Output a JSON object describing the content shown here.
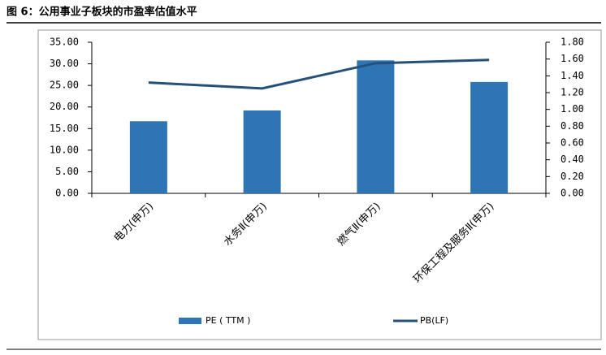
{
  "chart_data": {
    "type": "bar-line",
    "title": "图 6：公用事业子板块的市盈率估值水平",
    "categories": [
      "电力(申万)",
      "水务Ⅱ(申万)",
      "燃气Ⅱ(申万)",
      "环保工程及服务Ⅱ(申万)"
    ],
    "series": [
      {
        "name": "PE ( TTM )",
        "type": "bar",
        "color": "#2e75b6",
        "values": [
          16.7,
          19.2,
          30.8,
          25.8
        ]
      },
      {
        "name": "PB(LF)",
        "type": "line",
        "axis": "y2",
        "color": "#24507a",
        "values": [
          1.32,
          1.25,
          1.55,
          1.59
        ]
      }
    ],
    "ylim": [
      0,
      35
    ],
    "yticks": [
      {
        "value": 0,
        "label": "0.00"
      },
      {
        "value": 5,
        "label": "5.00"
      },
      {
        "value": 10,
        "label": "10.00"
      },
      {
        "value": 15,
        "label": "15.00"
      },
      {
        "value": 20,
        "label": "20.00"
      },
      {
        "value": 25,
        "label": "25.00"
      },
      {
        "value": 30,
        "label": "30.00"
      },
      {
        "value": 35,
        "label": "35.00"
      }
    ],
    "y2lim": [
      0,
      1.8
    ],
    "y2ticks": [
      {
        "value": 0,
        "label": "0.00"
      },
      {
        "value": 0.2,
        "label": "0.20"
      },
      {
        "value": 0.4,
        "label": "0.40"
      },
      {
        "value": 0.6,
        "label": "0.60"
      },
      {
        "value": 0.8,
        "label": "0.80"
      },
      {
        "value": 1.0,
        "label": "1.00"
      },
      {
        "value": 1.2,
        "label": "1.20"
      },
      {
        "value": 1.4,
        "label": "1.40"
      },
      {
        "value": 1.6,
        "label": "1.60"
      },
      {
        "value": 1.8,
        "label": "1.80"
      }
    ],
    "grid": true,
    "legend": "bottom"
  }
}
